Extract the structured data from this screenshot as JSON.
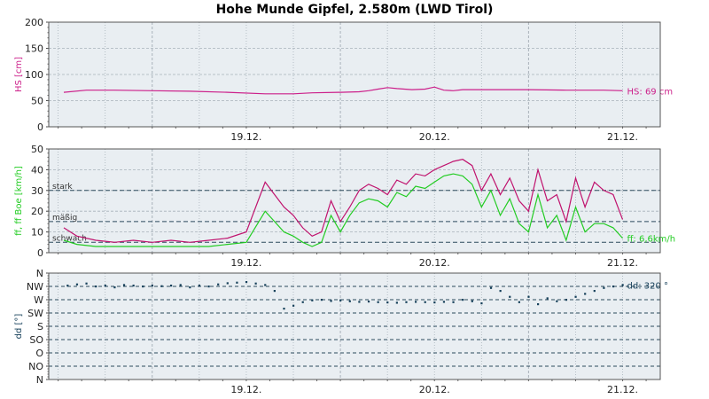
{
  "title": "Hohe Munde Gipfel, 2.580m (LWD Tirol)",
  "colors": {
    "plot_bg": "#e9eef2",
    "grid": "#a8b2ba",
    "hs": "#cc1f8a",
    "boe": "#c0136e",
    "ff": "#22cc22",
    "dd": "#16405a",
    "dashed": "#2c4a5c"
  },
  "chart_data": [
    {
      "type": "line",
      "ylabel": "HS [cm]",
      "ylim": [
        0,
        200
      ],
      "yticks": [
        "0",
        "50",
        "100",
        "150",
        "200"
      ],
      "xtick_labels": [
        "19.12.",
        "20.12.",
        "21.12."
      ],
      "grid": true,
      "series": [
        {
          "name": "HS",
          "x": [
            18.53,
            18.65,
            18.8,
            19.0,
            19.2,
            19.4,
            19.6,
            19.75,
            19.85,
            20.0,
            20.1,
            20.15,
            20.2,
            20.25,
            20.3,
            20.38,
            20.45,
            20.5,
            20.55,
            20.6,
            20.65,
            20.7,
            20.8,
            20.9,
            21.0,
            21.2,
            21.4,
            21.5
          ],
          "values": [
            66,
            70,
            70,
            69,
            68,
            66,
            63,
            63,
            65,
            66,
            67,
            69,
            72,
            75,
            73,
            71,
            72,
            76,
            70,
            69,
            71,
            71,
            71,
            71,
            71,
            70,
            70,
            69
          ]
        }
      ],
      "end_label": "HS: 69 cm"
    },
    {
      "type": "line",
      "ylabel": "ff, ff Boe [km/h]",
      "ylim": [
        0,
        50
      ],
      "yticks": [
        "0",
        "10",
        "20",
        "30",
        "40",
        "50"
      ],
      "xtick_labels": [
        "19.12.",
        "20.12.",
        "21.12."
      ],
      "grid": true,
      "reference_lines": [
        {
          "label": "stark",
          "value": 30
        },
        {
          "label": "mäßig",
          "value": 15
        },
        {
          "label": "schwach",
          "value": 5
        }
      ],
      "series": [
        {
          "name": "ff Boe",
          "x": [
            18.53,
            18.6,
            18.7,
            18.8,
            18.9,
            19.0,
            19.1,
            19.2,
            19.3,
            19.4,
            19.5,
            19.6,
            19.65,
            19.7,
            19.75,
            19.8,
            19.85,
            19.9,
            19.95,
            20.0,
            20.05,
            20.1,
            20.15,
            20.2,
            20.25,
            20.3,
            20.35,
            20.4,
            20.45,
            20.5,
            20.55,
            20.6,
            20.65,
            20.7,
            20.75,
            20.8,
            20.85,
            20.9,
            20.95,
            21.0,
            21.05,
            21.1,
            21.15,
            21.2,
            21.25,
            21.3,
            21.35,
            21.4,
            21.45,
            21.5
          ],
          "values": [
            12,
            8,
            6,
            5,
            6,
            5,
            6,
            5,
            6,
            7,
            10,
            34,
            28,
            22,
            18,
            12,
            8,
            10,
            25,
            15,
            22,
            30,
            33,
            31,
            28,
            35,
            33,
            38,
            37,
            40,
            42,
            44,
            45,
            42,
            30,
            38,
            28,
            36,
            25,
            20,
            40,
            25,
            28,
            15,
            36,
            22,
            34,
            30,
            28,
            16
          ]
        },
        {
          "name": "ff",
          "x": [
            18.53,
            18.6,
            18.7,
            18.8,
            18.9,
            19.0,
            19.1,
            19.2,
            19.3,
            19.4,
            19.5,
            19.6,
            19.65,
            19.7,
            19.75,
            19.8,
            19.85,
            19.9,
            19.95,
            20.0,
            20.05,
            20.1,
            20.15,
            20.2,
            20.25,
            20.3,
            20.35,
            20.4,
            20.45,
            20.5,
            20.55,
            20.6,
            20.65,
            20.7,
            20.75,
            20.8,
            20.85,
            20.9,
            20.95,
            21.0,
            21.05,
            21.1,
            21.15,
            21.2,
            21.25,
            21.3,
            21.35,
            21.4,
            21.45,
            21.5
          ],
          "values": [
            6,
            4,
            3,
            3,
            3,
            3,
            3,
            3,
            3,
            4,
            5,
            20,
            15,
            10,
            8,
            5,
            3,
            5,
            18,
            10,
            18,
            24,
            26,
            25,
            22,
            29,
            27,
            32,
            31,
            34,
            37,
            38,
            37,
            33,
            22,
            30,
            18,
            26,
            14,
            10,
            28,
            12,
            18,
            6,
            22,
            10,
            14,
            14,
            12,
            7
          ]
        }
      ],
      "end_label": "ff: 6,6km/h"
    },
    {
      "type": "scatter",
      "ylabel": "dd [°]",
      "ylim": [
        0,
        360
      ],
      "yticks": [
        "N",
        "NO",
        "O",
        "SO",
        "S",
        "SW",
        "W",
        "NW",
        "N"
      ],
      "xtick_labels": [
        "19.12.",
        "20.12.",
        "21.12."
      ],
      "grid": true,
      "series": [
        {
          "name": "dd",
          "x": [
            18.55,
            18.6,
            18.65,
            18.7,
            18.75,
            18.8,
            18.85,
            18.9,
            18.95,
            19.0,
            19.05,
            19.1,
            19.15,
            19.2,
            19.25,
            19.3,
            19.35,
            19.4,
            19.45,
            19.5,
            19.55,
            19.6,
            19.65,
            19.7,
            19.75,
            19.8,
            19.85,
            19.9,
            19.95,
            20.0,
            20.05,
            20.1,
            20.15,
            20.2,
            20.25,
            20.3,
            20.35,
            20.4,
            20.45,
            20.5,
            20.55,
            20.6,
            20.65,
            20.7,
            20.75,
            20.8,
            20.85,
            20.9,
            20.95,
            21.0,
            21.05,
            21.1,
            21.15,
            21.2,
            21.25,
            21.3,
            21.35,
            21.4,
            21.45,
            21.5
          ],
          "values": [
            318,
            322,
            325,
            315,
            318,
            312,
            320,
            318,
            315,
            318,
            316,
            318,
            320,
            312,
            318,
            315,
            322,
            326,
            328,
            330,
            325,
            320,
            300,
            240,
            250,
            262,
            268,
            270,
            266,
            268,
            265,
            263,
            264,
            262,
            261,
            260,
            262,
            263,
            262,
            261,
            263,
            262,
            270,
            265,
            258,
            310,
            300,
            280,
            262,
            280,
            255,
            275,
            265,
            270,
            280,
            290,
            300,
            310,
            315,
            320
          ]
        }
      ],
      "end_label": "dd: 320 °"
    }
  ]
}
